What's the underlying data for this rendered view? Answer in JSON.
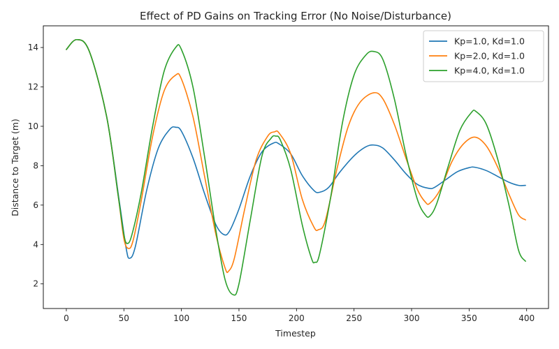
{
  "chart_data": {
    "type": "line",
    "title": "Effect of PD Gains on Tracking Error (No Noise/Disturbance)",
    "xlabel": "Timestep",
    "ylabel": "Distance to Target (m)",
    "xlim": [
      -20,
      419
    ],
    "ylim": [
      0.75,
      15.1
    ],
    "xticks": [
      0,
      50,
      100,
      150,
      200,
      250,
      300,
      350,
      400
    ],
    "yticks": [
      2,
      4,
      6,
      8,
      10,
      12,
      14
    ],
    "grid": false,
    "legend": "top-right",
    "series": [
      {
        "name": "Kp=1.0, Kd=1.0",
        "color": "#1f77b4",
        "points": [
          [
            0,
            13.9
          ],
          [
            9,
            14.4
          ],
          [
            20,
            13.8
          ],
          [
            35,
            10.5
          ],
          [
            46,
            6.2
          ],
          [
            52,
            3.8
          ],
          [
            55,
            3.3
          ],
          [
            60,
            3.9
          ],
          [
            70,
            6.8
          ],
          [
            80,
            8.9
          ],
          [
            90,
            9.85
          ],
          [
            95,
            9.95
          ],
          [
            100,
            9.75
          ],
          [
            110,
            8.4
          ],
          [
            120,
            6.6
          ],
          [
            130,
            5.0
          ],
          [
            137,
            4.5
          ],
          [
            142,
            4.7
          ],
          [
            150,
            5.8
          ],
          [
            160,
            7.5
          ],
          [
            170,
            8.7
          ],
          [
            180,
            9.15
          ],
          [
            185,
            9.1
          ],
          [
            195,
            8.6
          ],
          [
            205,
            7.5
          ],
          [
            215,
            6.75
          ],
          [
            220,
            6.65
          ],
          [
            228,
            6.9
          ],
          [
            238,
            7.7
          ],
          [
            250,
            8.5
          ],
          [
            260,
            8.95
          ],
          [
            267,
            9.05
          ],
          [
            275,
            8.9
          ],
          [
            285,
            8.3
          ],
          [
            295,
            7.6
          ],
          [
            305,
            7.05
          ],
          [
            315,
            6.85
          ],
          [
            320,
            6.9
          ],
          [
            330,
            7.3
          ],
          [
            340,
            7.7
          ],
          [
            350,
            7.9
          ],
          [
            355,
            7.92
          ],
          [
            365,
            7.75
          ],
          [
            375,
            7.45
          ],
          [
            385,
            7.15
          ],
          [
            393,
            7.0
          ],
          [
            399,
            7.0
          ]
        ]
      },
      {
        "name": "Kp=2.0, Kd=1.0",
        "color": "#ff7f0e",
        "points": [
          [
            0,
            13.9
          ],
          [
            9,
            14.4
          ],
          [
            20,
            13.8
          ],
          [
            35,
            10.5
          ],
          [
            45,
            6.5
          ],
          [
            50,
            4.3
          ],
          [
            54,
            3.8
          ],
          [
            58,
            4.2
          ],
          [
            65,
            6.2
          ],
          [
            75,
            9.5
          ],
          [
            85,
            11.8
          ],
          [
            95,
            12.6
          ],
          [
            100,
            12.4
          ],
          [
            110,
            10.5
          ],
          [
            120,
            7.5
          ],
          [
            130,
            4.5
          ],
          [
            138,
            2.8
          ],
          [
            141,
            2.65
          ],
          [
            146,
            3.3
          ],
          [
            155,
            5.8
          ],
          [
            165,
            8.3
          ],
          [
            175,
            9.5
          ],
          [
            181,
            9.72
          ],
          [
            185,
            9.65
          ],
          [
            195,
            8.6
          ],
          [
            205,
            6.3
          ],
          [
            215,
            4.9
          ],
          [
            219,
            4.75
          ],
          [
            225,
            5.2
          ],
          [
            235,
            7.8
          ],
          [
            245,
            10.0
          ],
          [
            255,
            11.2
          ],
          [
            267,
            11.7
          ],
          [
            275,
            11.4
          ],
          [
            285,
            10.1
          ],
          [
            295,
            8.4
          ],
          [
            305,
            6.8
          ],
          [
            312,
            6.15
          ],
          [
            316,
            6.1
          ],
          [
            325,
            6.8
          ],
          [
            335,
            8.2
          ],
          [
            345,
            9.1
          ],
          [
            355,
            9.45
          ],
          [
            365,
            9.0
          ],
          [
            375,
            7.9
          ],
          [
            385,
            6.5
          ],
          [
            393,
            5.5
          ],
          [
            399,
            5.25
          ]
        ]
      },
      {
        "name": "Kp=4.0, Kd=1.0",
        "color": "#2ca02c",
        "points": [
          [
            0,
            13.9
          ],
          [
            9,
            14.4
          ],
          [
            20,
            13.8
          ],
          [
            35,
            10.5
          ],
          [
            45,
            6.5
          ],
          [
            50,
            4.5
          ],
          [
            53,
            4.05
          ],
          [
            57,
            4.5
          ],
          [
            65,
            6.6
          ],
          [
            75,
            10.0
          ],
          [
            85,
            12.8
          ],
          [
            95,
            14.0
          ],
          [
            100,
            13.9
          ],
          [
            110,
            12.0
          ],
          [
            120,
            8.5
          ],
          [
            130,
            4.7
          ],
          [
            138,
            2.2
          ],
          [
            145,
            1.45
          ],
          [
            150,
            2.0
          ],
          [
            160,
            5.3
          ],
          [
            170,
            8.5
          ],
          [
            178,
            9.4
          ],
          [
            182,
            9.5
          ],
          [
            186,
            9.3
          ],
          [
            195,
            7.8
          ],
          [
            205,
            5.0
          ],
          [
            213,
            3.3
          ],
          [
            216,
            3.1
          ],
          [
            220,
            3.5
          ],
          [
            230,
            6.5
          ],
          [
            240,
            10.2
          ],
          [
            250,
            12.6
          ],
          [
            260,
            13.6
          ],
          [
            267,
            13.8
          ],
          [
            275,
            13.4
          ],
          [
            285,
            11.4
          ],
          [
            295,
            8.6
          ],
          [
            305,
            6.3
          ],
          [
            312,
            5.5
          ],
          [
            316,
            5.45
          ],
          [
            322,
            6.1
          ],
          [
            332,
            8.0
          ],
          [
            342,
            9.8
          ],
          [
            352,
            10.7
          ],
          [
            356,
            10.75
          ],
          [
            365,
            10.1
          ],
          [
            375,
            8.3
          ],
          [
            385,
            5.9
          ],
          [
            393,
            3.7
          ],
          [
            399,
            3.15
          ]
        ]
      }
    ]
  }
}
